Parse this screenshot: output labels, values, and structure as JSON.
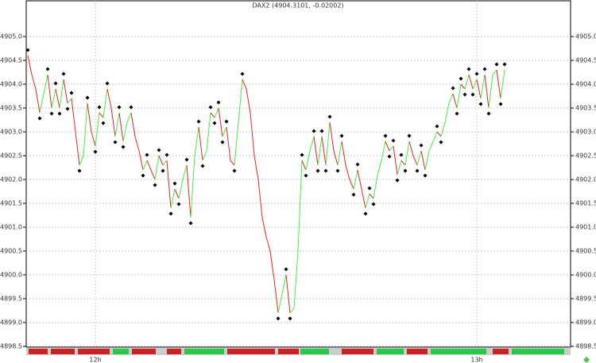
{
  "chart_data": {
    "type": "line",
    "title": "DAX2 (4904.3101, -0.02002)",
    "values": [
      4904.6,
      4904.2,
      4903.9,
      4903.4,
      4903.8,
      4904.2,
      4903.5,
      4903.9,
      4903.5,
      4904.1,
      4903.6,
      4903.7,
      4903.0,
      4902.3,
      4902.5,
      4903.6,
      4903.0,
      4902.7,
      4903.4,
      4903.3,
      4903.9,
      4903.5,
      4902.9,
      4903.4,
      4902.8,
      4903.2,
      4903.4,
      4902.9,
      4902.6,
      4902.2,
      4902.4,
      4902.2,
      4902.0,
      4902.5,
      4902.3,
      4902.4,
      4901.4,
      4901.8,
      4901.6,
      4902.0,
      4902.3,
      4901.2,
      4902.5,
      4903.1,
      4902.4,
      4902.6,
      4903.4,
      4903.3,
      4903.5,
      4902.9,
      4903.1,
      4902.4,
      4902.3,
      4903.2,
      4904.1,
      4903.9,
      4903.4,
      4902.5,
      4902.0,
      4901.2,
      4900.8,
      4900.5,
      4899.9,
      4899.2,
      4899.6,
      4900.0,
      4899.2,
      4899.3,
      4900.5,
      4902.4,
      4902.2,
      4902.6,
      4902.9,
      4902.3,
      4902.9,
      4902.3,
      4903.2,
      4902.6,
      4902.3,
      4902.8,
      4902.3,
      4902.0,
      4901.8,
      4902.2,
      4901.8,
      4901.4,
      4901.7,
      4901.6,
      4902.1,
      4902.4,
      4902.8,
      4902.6,
      4902.7,
      4902.1,
      4902.4,
      4902.3,
      4902.8,
      4902.5,
      4902.3,
      4902.6,
      4902.2,
      4902.6,
      4902.8,
      4903.0,
      4902.9,
      4903.2,
      4903.6,
      4903.8,
      4903.5,
      4904.0,
      4903.9,
      4904.2,
      4903.9,
      4904.1,
      4903.7,
      4904.2,
      4903.5,
      4904.2,
      4904.3,
      4903.7,
      4904.3
    ],
    "up_color": "#44ee44",
    "down_color": "#ee2222",
    "xlim": [
      0,
      136
    ],
    "xticks": [
      {
        "value": 17,
        "label": "12h"
      },
      {
        "value": 113,
        "label": "13h"
      }
    ],
    "ylim": [
      4898.5,
      4905.75
    ],
    "yticks": [
      4898.5,
      {
        "value": 4899,
        "label": "4899.0"
      },
      4899.5,
      {
        "value": 4900,
        "label": "4900.0"
      },
      4900.5,
      {
        "value": 4901,
        "label": "4901.0"
      },
      4901.5,
      {
        "value": 4902,
        "label": "4902.0"
      },
      4902.5,
      {
        "value": 4903,
        "label": "4903.0"
      },
      4903.5,
      {
        "value": 4904,
        "label": "4904.0"
      },
      4904.5,
      {
        "value": 4905,
        "label": "4905.0"
      }
    ],
    "grid": true
  }
}
